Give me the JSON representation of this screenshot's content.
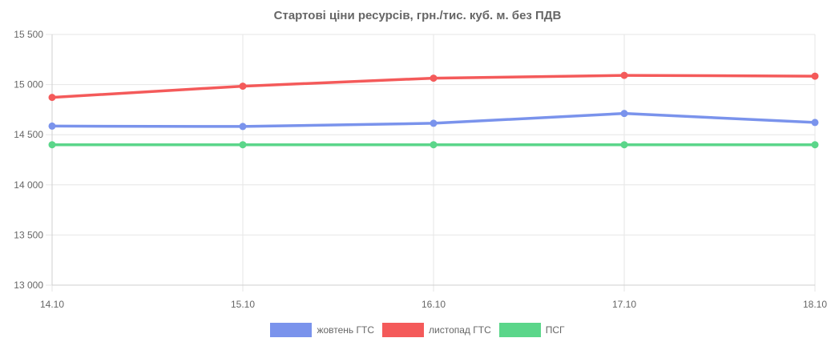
{
  "chart_data": {
    "type": "line",
    "title": "Стартові ціни ресурсів, грн./тис. куб. м. без ПДВ",
    "categories": [
      "14.10",
      "15.10",
      "16.10",
      "17.10",
      "18.10"
    ],
    "ylim": [
      13000,
      15500
    ],
    "yticks": [
      13000,
      13500,
      14000,
      14500,
      15000,
      15500
    ],
    "ytick_labels": [
      "13 000",
      "13 500",
      "14 000",
      "14 500",
      "15 000",
      "15 500"
    ],
    "grid": true,
    "legend_position": "bottom",
    "series": [
      {
        "name": "жовтень ГТС",
        "color": "#7a93ec",
        "values": [
          14586,
          14582,
          14614,
          14712,
          14622
        ]
      },
      {
        "name": "листопад ГТС",
        "color": "#f45a5a",
        "values": [
          14872,
          14984,
          15064,
          15092,
          15084
        ]
      },
      {
        "name": "ПСГ",
        "color": "#5bd68a",
        "values": [
          14400,
          14400,
          14400,
          14400,
          14400
        ]
      }
    ]
  }
}
